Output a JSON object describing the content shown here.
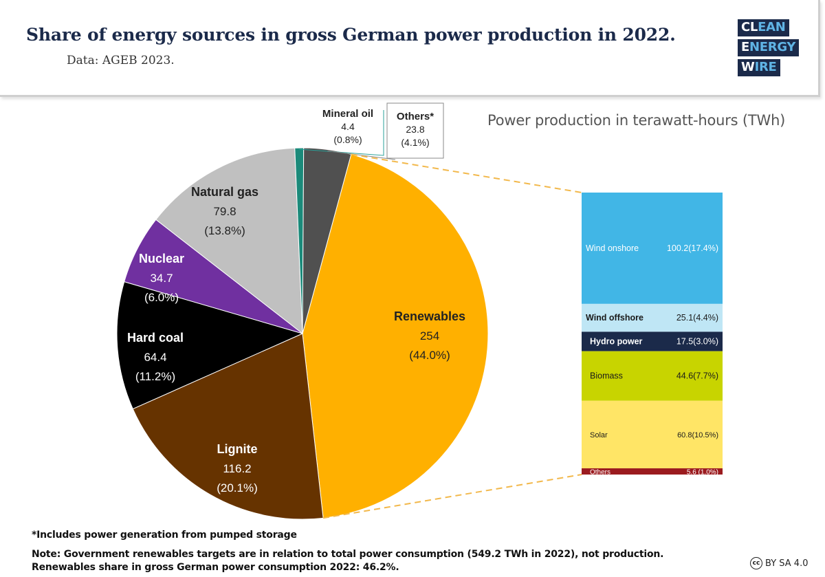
{
  "header": {
    "title": "Share of energy sources in gross German power production in 2022.",
    "subtitle": "Data: AGEB 2023."
  },
  "logo": {
    "line1": {
      "a": "CL",
      "b": "EAN"
    },
    "line2": {
      "a": "E",
      "b": "NERGY"
    },
    "line3": {
      "a": "W",
      "b": "IRE"
    }
  },
  "unit_label": "Power production in terawatt-hours (TWh)",
  "chart_data": [
    {
      "type": "pie",
      "unit": "TWh",
      "slices": [
        {
          "label": "Renewables",
          "value": 254,
          "value_text": "254",
          "percent_text": "(44.0%)",
          "color": "#ffb000"
        },
        {
          "label": "Lignite",
          "value": 116.2,
          "value_text": "116.2",
          "percent_text": "(20.1%)",
          "color": "#663300"
        },
        {
          "label": "Hard coal",
          "value": 64.4,
          "value_text": "64.4",
          "percent_text": "(11.2%)",
          "color": "#000000"
        },
        {
          "label": "Nuclear",
          "value": 34.7,
          "value_text": "34.7",
          "percent_text": "(6.0%)",
          "color": "#7030a0"
        },
        {
          "label": "Natural gas",
          "value": 79.8,
          "value_text": "79.8",
          "percent_text": "(13.8%)",
          "color": "#c0c0c0"
        },
        {
          "label": "Mineral oil",
          "value": 4.4,
          "value_text": "4.4",
          "percent_text": "(0.8%)",
          "color": "#1b8a7a"
        },
        {
          "label": "Others*",
          "value": 23.8,
          "value_text": "23.8",
          "percent_text": "(4.1%)",
          "color": "#505050"
        }
      ]
    },
    {
      "type": "bar",
      "stacked": true,
      "unit": "TWh",
      "segments": [
        {
          "label": "Wind onshore",
          "value": 100.2,
          "value_text": "100.2(17.4%)",
          "color": "#41b6e6"
        },
        {
          "label": "Wind offshore",
          "value": 25.1,
          "value_text": "25.1(4.4%)",
          "color": "#bfe6f5"
        },
        {
          "label": "Hydro power",
          "value": 17.5,
          "value_text": "17.5(3.0%)",
          "color": "#1b2a4a"
        },
        {
          "label": "Biomass",
          "value": 44.6,
          "value_text": "44.6(7.7%)",
          "color": "#c8d400"
        },
        {
          "label": "Solar",
          "value": 60.8,
          "value_text": "60.8(10.5%)",
          "color": "#ffe566"
        },
        {
          "label": "Others",
          "value": 5.6,
          "value_text": "5.6 (1.0%)",
          "color": "#9b1b1f"
        }
      ]
    }
  ],
  "footnote": "*Includes power generation from pumped storage",
  "note_line1": "Note: Government renewables targets are in relation to total power consumption (549.2 TWh in 2022), not production.",
  "note_line2": "Renewables share in gross German power consumption 2022: 46.2%.",
  "license": "BY SA 4.0",
  "license_icon": "cc"
}
